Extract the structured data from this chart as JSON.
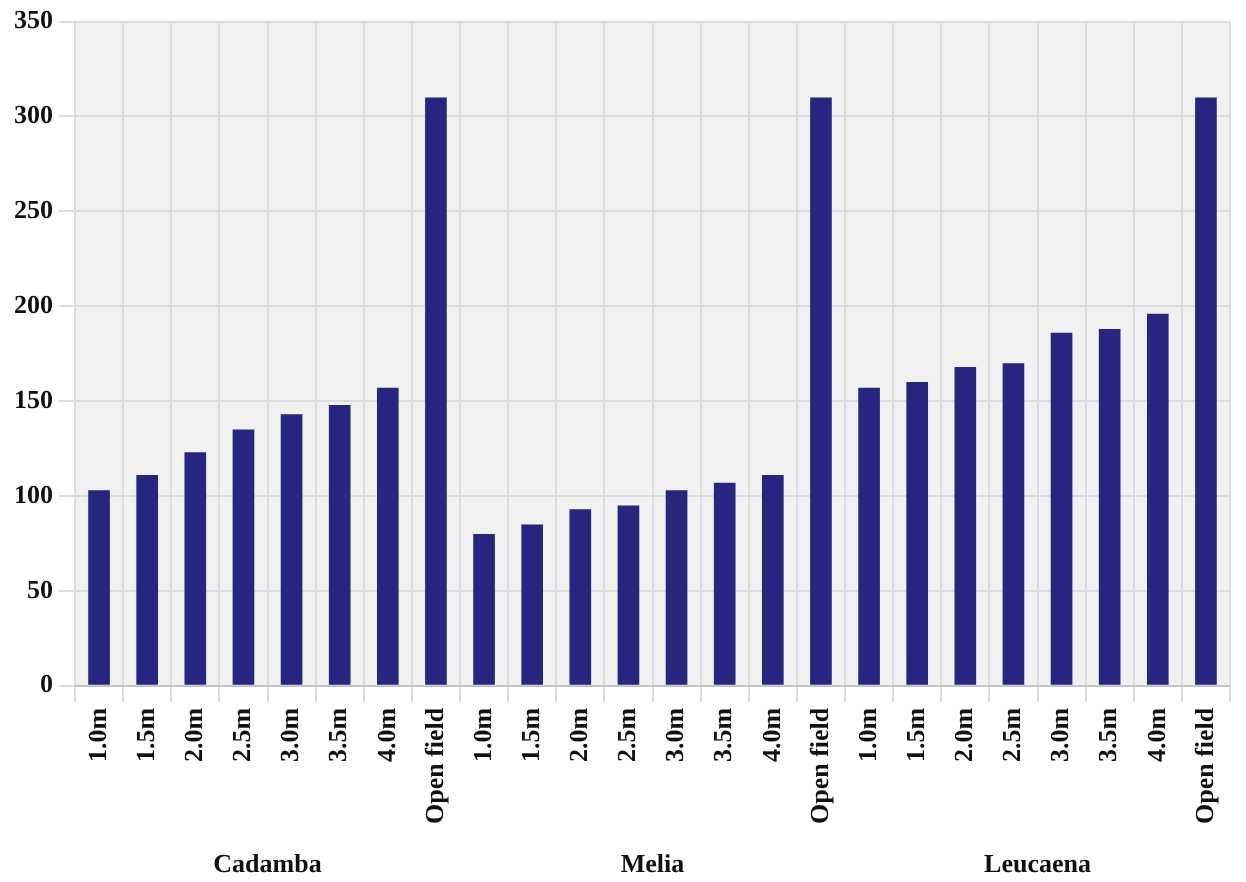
{
  "chart_data": {
    "type": "bar",
    "categories": [
      "1.0m",
      "1.5m",
      "2.0m",
      "2.5m",
      "3.0m",
      "3.5m",
      "4.0m",
      "Open field",
      "1.0m",
      "1.5m",
      "2.0m",
      "2.5m",
      "3.0m",
      "3.5m",
      "4.0m",
      "Open field",
      "1.0m",
      "1.5m",
      "2.0m",
      "2.5m",
      "3.0m",
      "3.5m",
      "4.0m",
      "Open field"
    ],
    "values": [
      103,
      111,
      123,
      135,
      143,
      148,
      157,
      310,
      80,
      85,
      93,
      95,
      103,
      107,
      111,
      310,
      157,
      160,
      168,
      170,
      186,
      188,
      196,
      310
    ],
    "color": "#262680",
    "ylim": [
      0,
      350
    ],
    "yticks": [
      0,
      50,
      100,
      150,
      200,
      250,
      300,
      350
    ],
    "annotations": [
      "Cadamba",
      "Melia",
      "Leucaena"
    ],
    "grid": true,
    "legend": false
  }
}
